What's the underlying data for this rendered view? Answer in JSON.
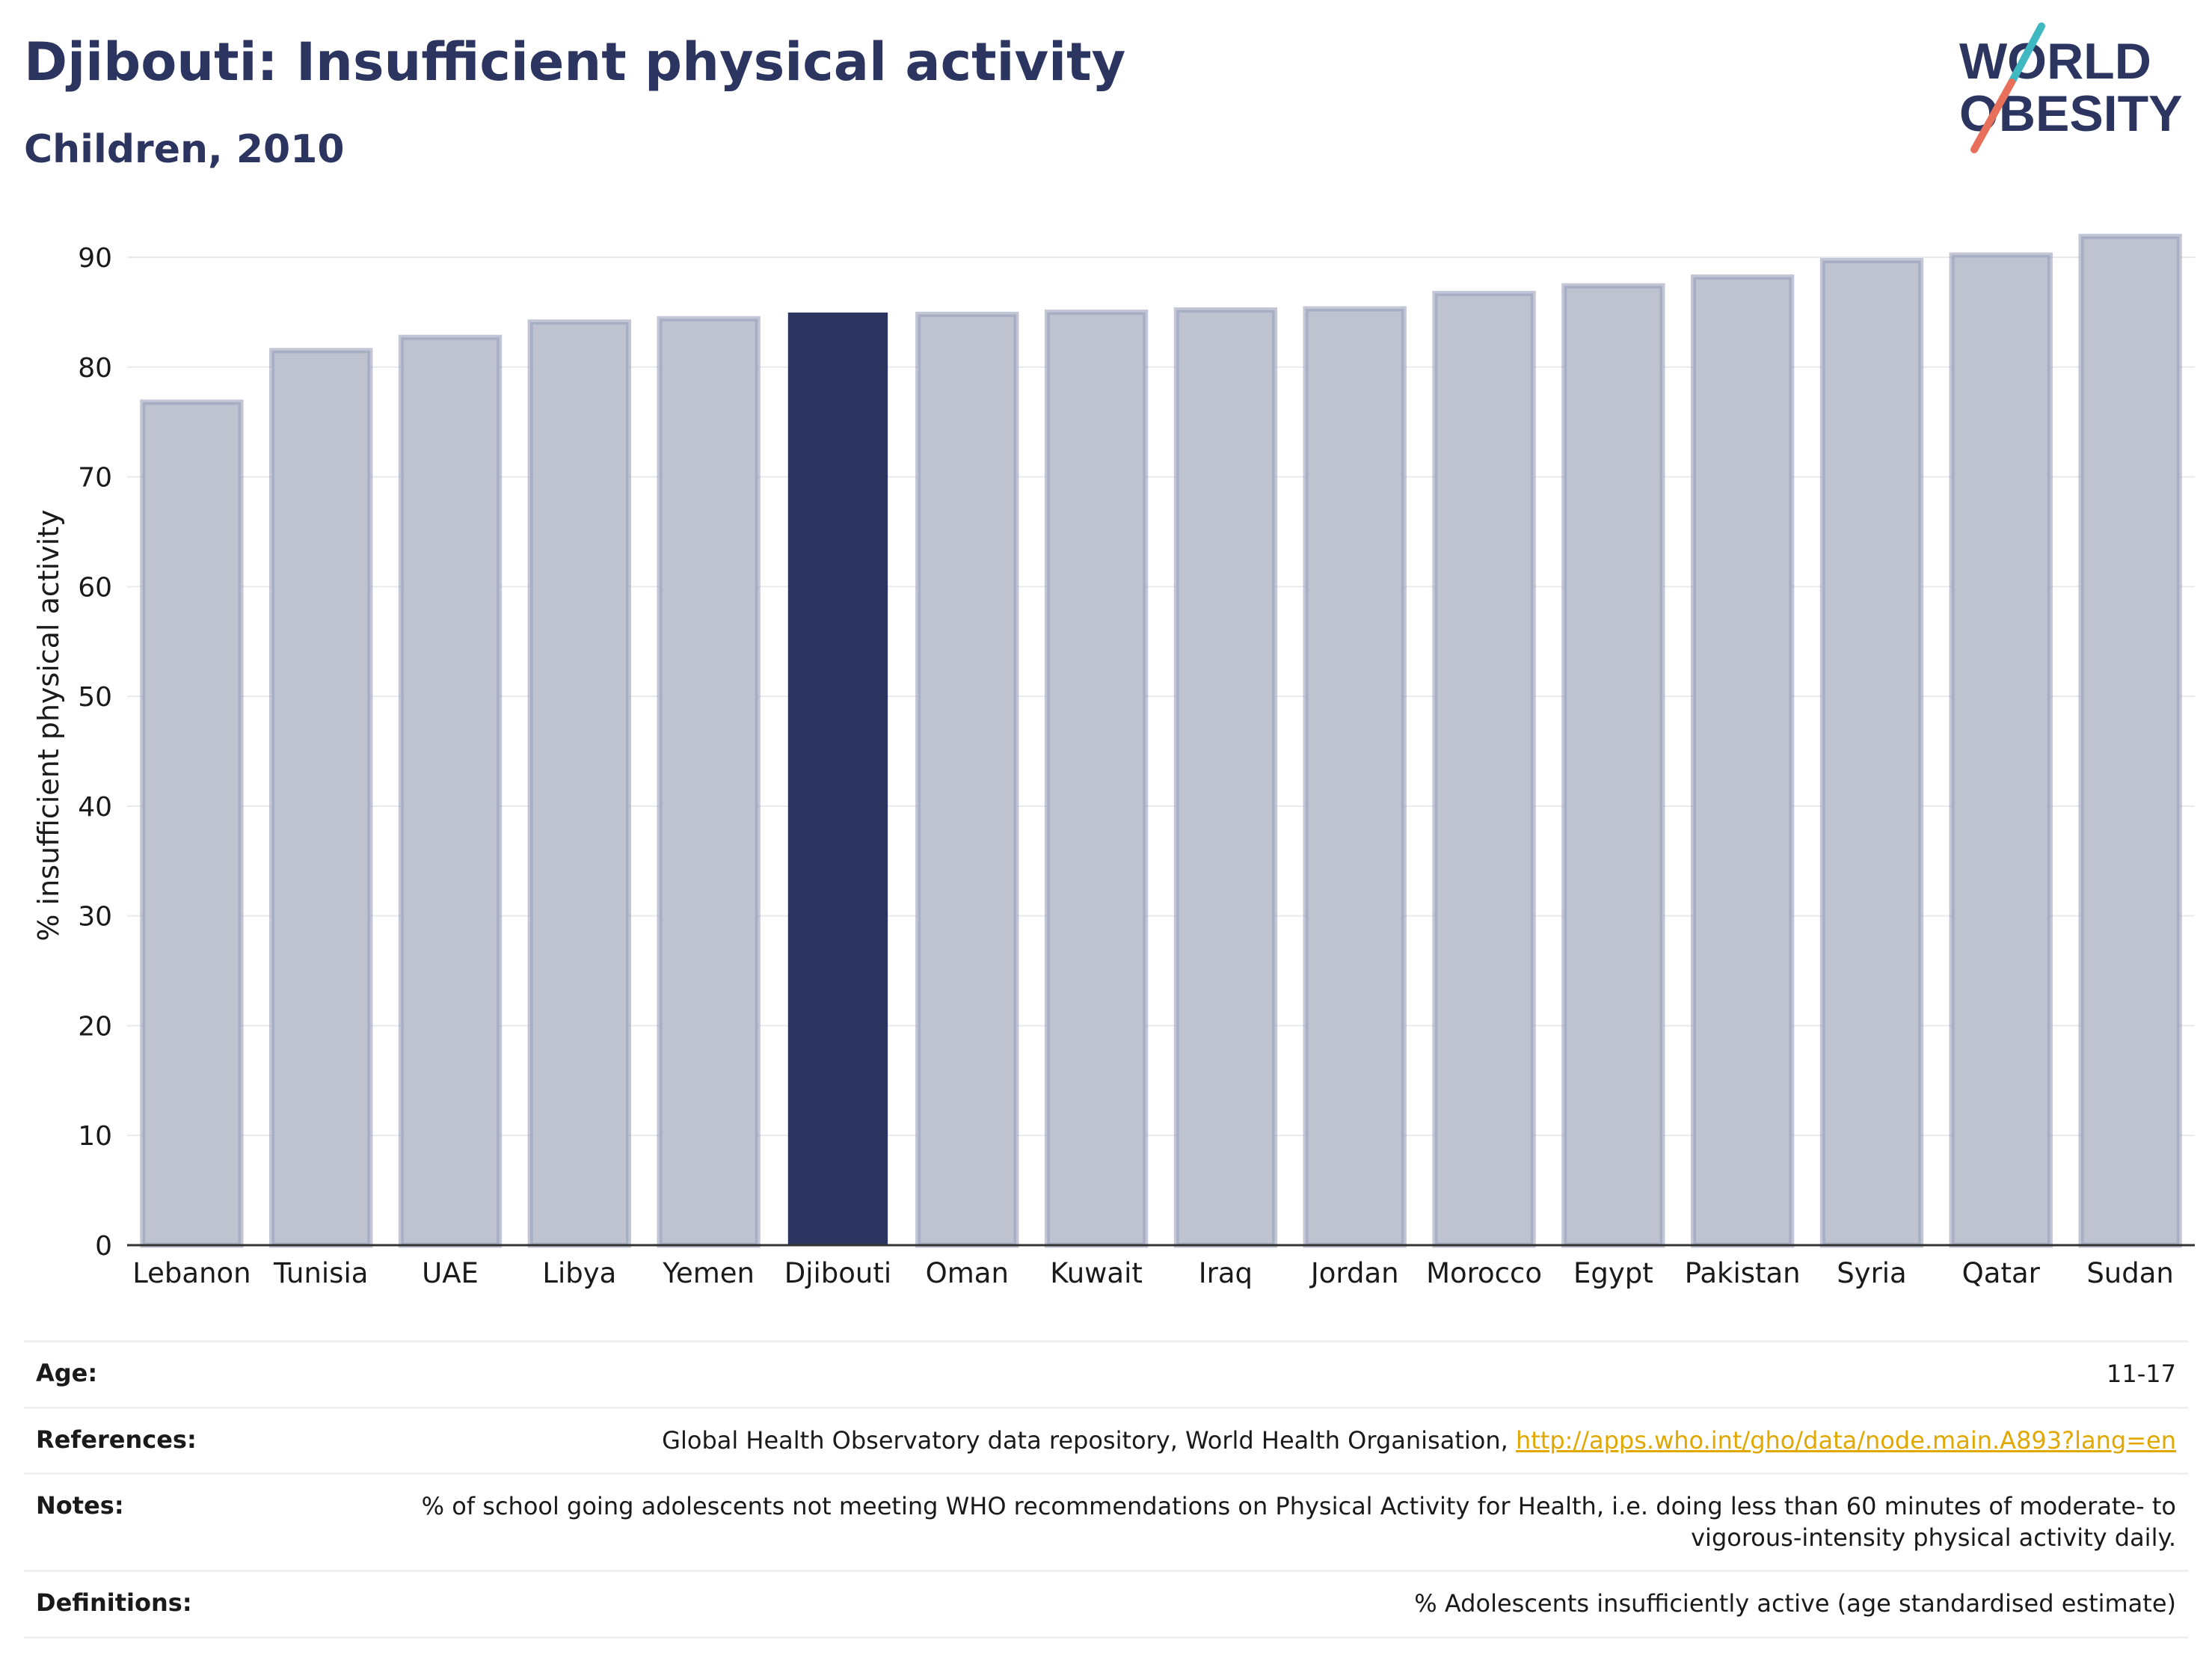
{
  "header": {
    "title": "Djibouti: Insufficient physical activity",
    "subtitle": "Children, 2010"
  },
  "logo": {
    "line1": "WORLD",
    "line2": "OBESITY",
    "colors": {
      "text": "#2b3560",
      "slash_top": "#3fb8c2",
      "slash_bottom": "#e8705a"
    }
  },
  "colors": {
    "highlight": "#2b3560",
    "bar_fill": "#bfc2cf",
    "bar_edge": "#9aa0ba",
    "title": "#2b3560",
    "link": "#e0a800"
  },
  "chart_data": {
    "type": "bar",
    "title": "",
    "xlabel": "",
    "ylabel": "% insufficient physical activity",
    "ylim": [
      0,
      93
    ],
    "yticks": [
      0,
      10,
      20,
      30,
      40,
      50,
      60,
      70,
      80,
      90
    ],
    "grid": true,
    "categories": [
      "Lebanon",
      "Tunisia",
      "UAE",
      "Libya",
      "Yemen",
      "Djibouti",
      "Oman",
      "Kuwait",
      "Iraq",
      "Jordan",
      "Morocco",
      "Egypt",
      "Pakistan",
      "Syria",
      "Qatar",
      "Sudan"
    ],
    "values": [
      76.8,
      81.5,
      82.7,
      84.1,
      84.4,
      84.9,
      84.8,
      85.0,
      85.2,
      85.3,
      86.7,
      87.4,
      88.2,
      89.7,
      90.2,
      91.9
    ],
    "highlight": "Djibouti"
  },
  "info": [
    {
      "label": "Age:",
      "value": "11-17"
    },
    {
      "label": "References:",
      "value": "Global Health Observatory data repository, World Health Organisation, ",
      "link": "http://apps.who.int/gho/data/node.main.A893?lang=en"
    },
    {
      "label": "Notes:",
      "value": "% of school going adolescents not meeting WHO recommendations on Physical Activity for Health, i.e. doing less than 60 minutes of moderate- to vigorous-intensity physical activity daily."
    },
    {
      "label": "Definitions:",
      "value": "% Adolescents insufficiently active (age standardised estimate)"
    }
  ]
}
